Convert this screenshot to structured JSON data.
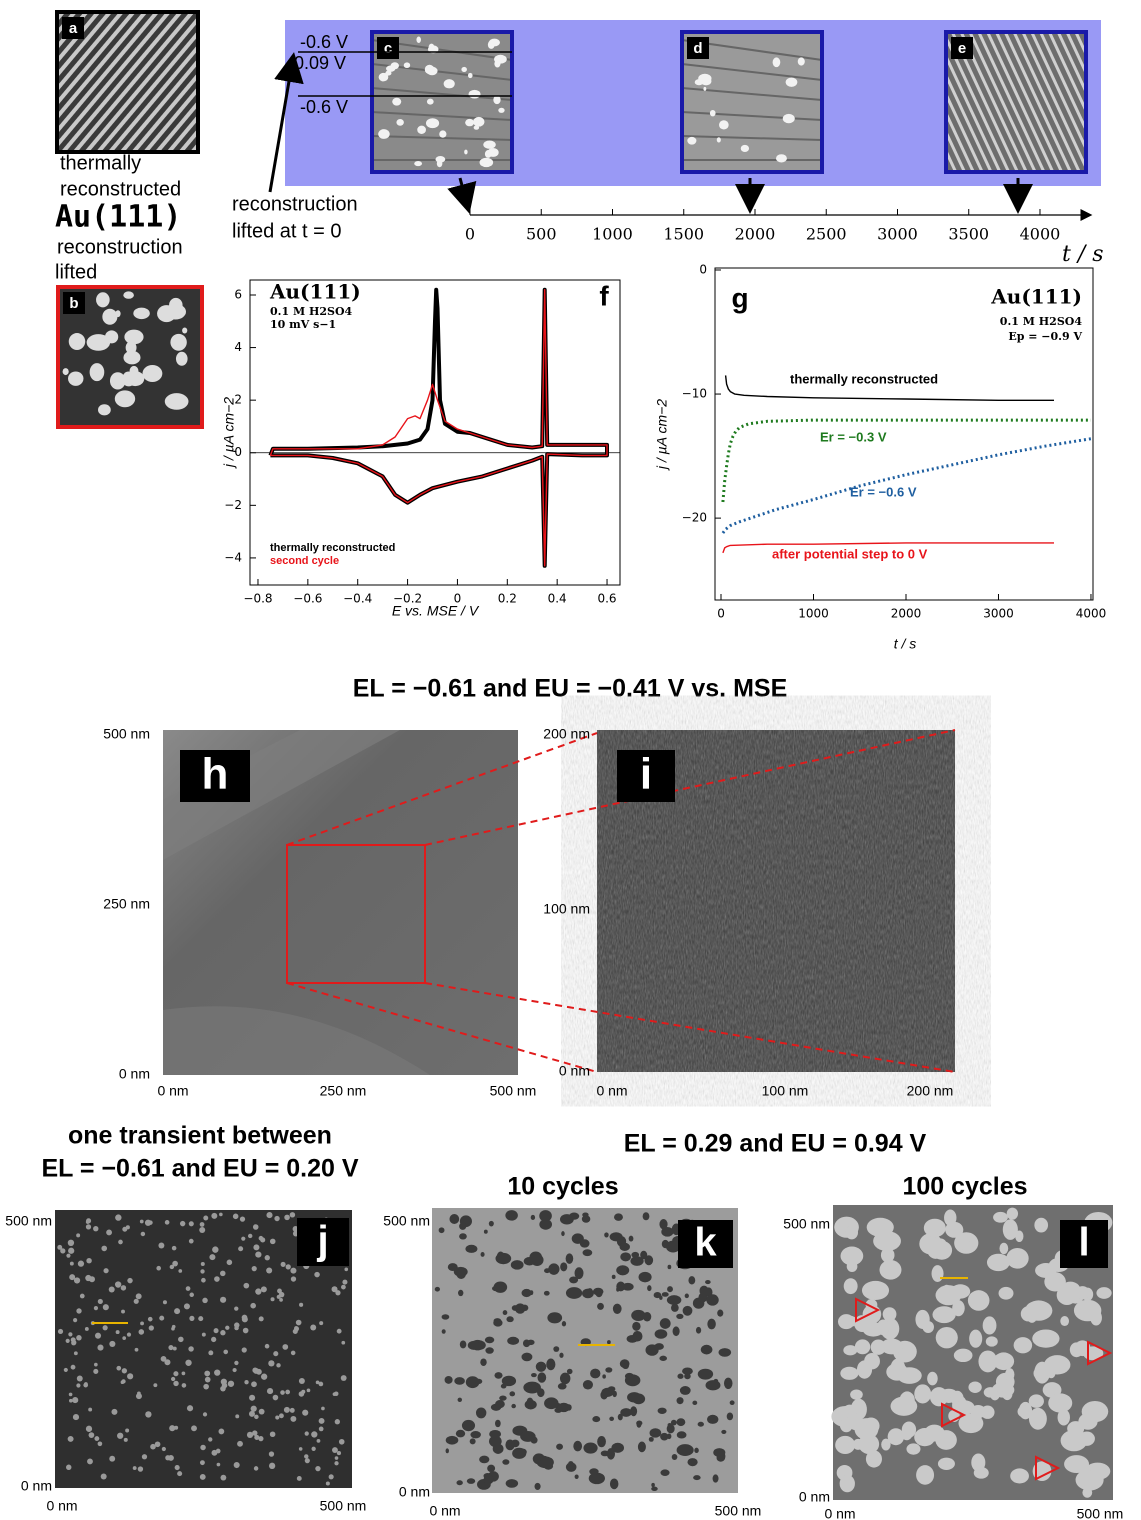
{
  "top": {
    "a": "a",
    "b": "b",
    "c": "c",
    "d": "d",
    "e": "e",
    "thermally": [
      "thermally",
      "reconstructed"
    ],
    "au": "Au(111)",
    "lifted": [
      "reconstruction",
      "lifted"
    ],
    "potentials": [
      "-0.6 V",
      "0.09 V",
      "-0.6 V"
    ],
    "lifted_at": [
      "reconstruction",
      "lifted at t = 0"
    ]
  },
  "timeline": {
    "xlim": [
      0,
      4351
    ],
    "xticks": [
      0,
      500,
      1000,
      1500,
      2000,
      2500,
      3000,
      3500,
      4000
    ],
    "label": "t / s"
  },
  "chart_data": [
    {
      "type": "line",
      "panel": "f",
      "title": "Au(111)",
      "subtitle": [
        "0.1 M H2SO4",
        "10 mV s−1"
      ],
      "x_label": "E vs. MSE / V",
      "y_label": "j / µA cm−2",
      "xlim": [
        -0.832,
        0.652
      ],
      "ylim": [
        -5.03,
        6.57
      ],
      "xticks": [
        {
          "value": -0.8,
          "label": "−0.8"
        },
        {
          "value": -0.6,
          "label": "−0.6"
        },
        {
          "value": -0.4,
          "label": "−0.4"
        },
        {
          "value": -0.2,
          "label": "−0.2"
        },
        0,
        0.2,
        0.4,
        0.6
      ],
      "yticks": [
        {
          "value": -4,
          "label": "−4"
        },
        {
          "value": -2,
          "label": "−2"
        },
        0,
        2,
        4,
        6
      ],
      "zero_line": true,
      "series": [
        {
          "name": "thermally reconstructed",
          "color": "#000000",
          "style": "thick",
          "x": [
            -0.75,
            -0.74,
            -0.6,
            -0.4,
            -0.3,
            -0.2,
            -0.15,
            -0.12,
            -0.1,
            -0.09,
            -0.085,
            -0.08,
            -0.07,
            -0.05,
            0,
            0.05,
            0.1,
            0.2,
            0.3,
            0.34,
            0.35,
            0.36,
            0.5,
            0.6,
            0.6,
            0.5,
            0.36,
            0.35,
            0.34,
            0.3,
            0.2,
            0.1,
            0,
            -0.1,
            -0.15,
            -0.2,
            -0.25,
            -0.3,
            -0.4,
            -0.5,
            -0.6,
            -0.75
          ],
          "values": [
            -0.1,
            0.15,
            0.15,
            0.2,
            0.25,
            0.35,
            0.5,
            0.9,
            2.0,
            5.0,
            6.2,
            5.5,
            2.0,
            1.1,
            0.8,
            0.75,
            0.6,
            0.3,
            0.2,
            0.25,
            6.2,
            0.3,
            0.3,
            0.3,
            -0.1,
            -0.1,
            -0.05,
            -4.3,
            -0.15,
            -0.3,
            -0.6,
            -0.9,
            -1.1,
            -1.35,
            -1.6,
            -1.9,
            -1.6,
            -0.9,
            -0.4,
            -0.2,
            -0.1,
            -0.1
          ]
        },
        {
          "name": "second cycle",
          "color": "#e8141a",
          "style": "solid",
          "x": [
            -0.75,
            -0.74,
            -0.4,
            -0.3,
            -0.25,
            -0.2,
            -0.17,
            -0.15,
            -0.12,
            -0.1,
            -0.08,
            -0.05,
            0,
            0.1,
            0.2,
            0.3,
            0.34,
            0.35,
            0.36,
            0.5,
            0.6,
            0.6,
            0.5,
            0.36,
            0.35,
            0.34,
            0.3,
            0.2,
            0.1,
            0,
            -0.1,
            -0.15,
            -0.2,
            -0.25,
            -0.3,
            -0.4,
            -0.5,
            -0.6,
            -0.75
          ],
          "values": [
            -0.1,
            0.15,
            0.15,
            0.3,
            0.6,
            1.3,
            1.4,
            1.3,
            2.0,
            2.6,
            2.0,
            1.2,
            0.9,
            0.6,
            0.3,
            0.2,
            0.25,
            6.2,
            0.3,
            0.3,
            0.3,
            -0.1,
            -0.1,
            -0.05,
            -4.3,
            -0.15,
            -0.3,
            -0.6,
            -0.9,
            -1.1,
            -1.35,
            -1.6,
            -1.9,
            -1.6,
            -0.9,
            -0.4,
            -0.2,
            -0.1,
            -0.1
          ]
        }
      ]
    },
    {
      "type": "line",
      "panel": "g",
      "title": "Au(111)",
      "subtitle": [
        "0.1 M H2SO4",
        "Ep = −0.9 V"
      ],
      "x_label": "t / s",
      "y_label": "j / µA cm−2",
      "xlim": [
        -65,
        4022
      ],
      "ylim": [
        -26.6,
        0.16
      ],
      "xticks": [
        0,
        1000,
        2000,
        3000,
        4000
      ],
      "yticks": [
        0,
        {
          "value": -10,
          "label": "−10"
        },
        {
          "value": -20,
          "label": "−20"
        }
      ],
      "zero_line": false,
      "series": [
        {
          "name": "thermally reconstructed",
          "color": "#000000",
          "style": "solid",
          "x": [
            50,
            60,
            80,
            100,
            150,
            250,
            500,
            1000,
            2000,
            3000,
            3600
          ],
          "values": [
            -8.5,
            -9.2,
            -9.6,
            -9.8,
            -10.0,
            -10.1,
            -10.2,
            -10.3,
            -10.4,
            -10.5,
            -10.5
          ]
        },
        {
          "name": "Er = −0.3 V",
          "color": "#1e7a1e",
          "style": "dotted",
          "x": [
            20,
            40,
            60,
            80,
            100,
            130,
            160,
            200,
            300,
            500,
            1000,
            2000,
            3000,
            4000
          ],
          "values": [
            -18.7,
            -17,
            -15.8,
            -14.8,
            -14,
            -13.4,
            -13,
            -12.7,
            -12.4,
            -12.2,
            -12.1,
            -12.1,
            -12.1,
            -12.1
          ]
        },
        {
          "name": "Er = −0.6 V",
          "color": "#1f5fa0",
          "style": "dotted",
          "x": [
            20,
            50,
            100,
            200,
            400,
            600,
            800,
            1000,
            1500,
            2000,
            2500,
            3000,
            3500,
            4000
          ],
          "values": [
            -21.2,
            -20.9,
            -20.6,
            -20.3,
            -19.8,
            -19.3,
            -18.9,
            -18.5,
            -17.4,
            -16.5,
            -15.7,
            -14.9,
            -14.2,
            -13.6
          ]
        },
        {
          "name": "after potential step to 0 V",
          "color": "#e8141a",
          "style": "solid",
          "x": [
            20,
            40,
            60,
            100,
            500,
            1000,
            2000,
            3000,
            3600
          ],
          "values": [
            -22.8,
            -22.4,
            -22.3,
            -22.2,
            -22.1,
            -22.1,
            -22.0,
            -22.0,
            -22.0
          ]
        }
      ]
    }
  ],
  "stm": {
    "title": "EL = −0.61 and  EU = −0.41 V vs. MSE",
    "h": {
      "letter": "h",
      "y_labels": [
        "500 nm",
        "250 nm",
        "0 nm"
      ],
      "x_labels": [
        "0 nm",
        "250 nm",
        "500 nm"
      ]
    },
    "i": {
      "letter": "i",
      "y_labels": [
        "200 nm",
        "100 nm",
        "0 nm"
      ],
      "x_labels": [
        "0 nm",
        "100 nm",
        "200 nm"
      ]
    },
    "j_title": [
      "one transient between",
      "EL = −0.61 and  EU = 0.20 V"
    ],
    "kl_title": "EL = 0.29 and  EU = 0.94 V",
    "j": {
      "letter": "j",
      "y_labels": [
        "500 nm",
        "0 nm"
      ],
      "x_labels": [
        "0 nm",
        "500 nm"
      ]
    },
    "k": {
      "letter": "k",
      "title": "10 cycles",
      "y_labels": [
        "500 nm",
        "0 nm"
      ],
      "x_labels": [
        "0 nm",
        "500 nm"
      ]
    },
    "l": {
      "letter": "l",
      "title": "100 cycles",
      "y_labels": [
        "500 nm",
        "0 nm"
      ],
      "x_labels": [
        "0 nm",
        "500 nm"
      ]
    }
  }
}
